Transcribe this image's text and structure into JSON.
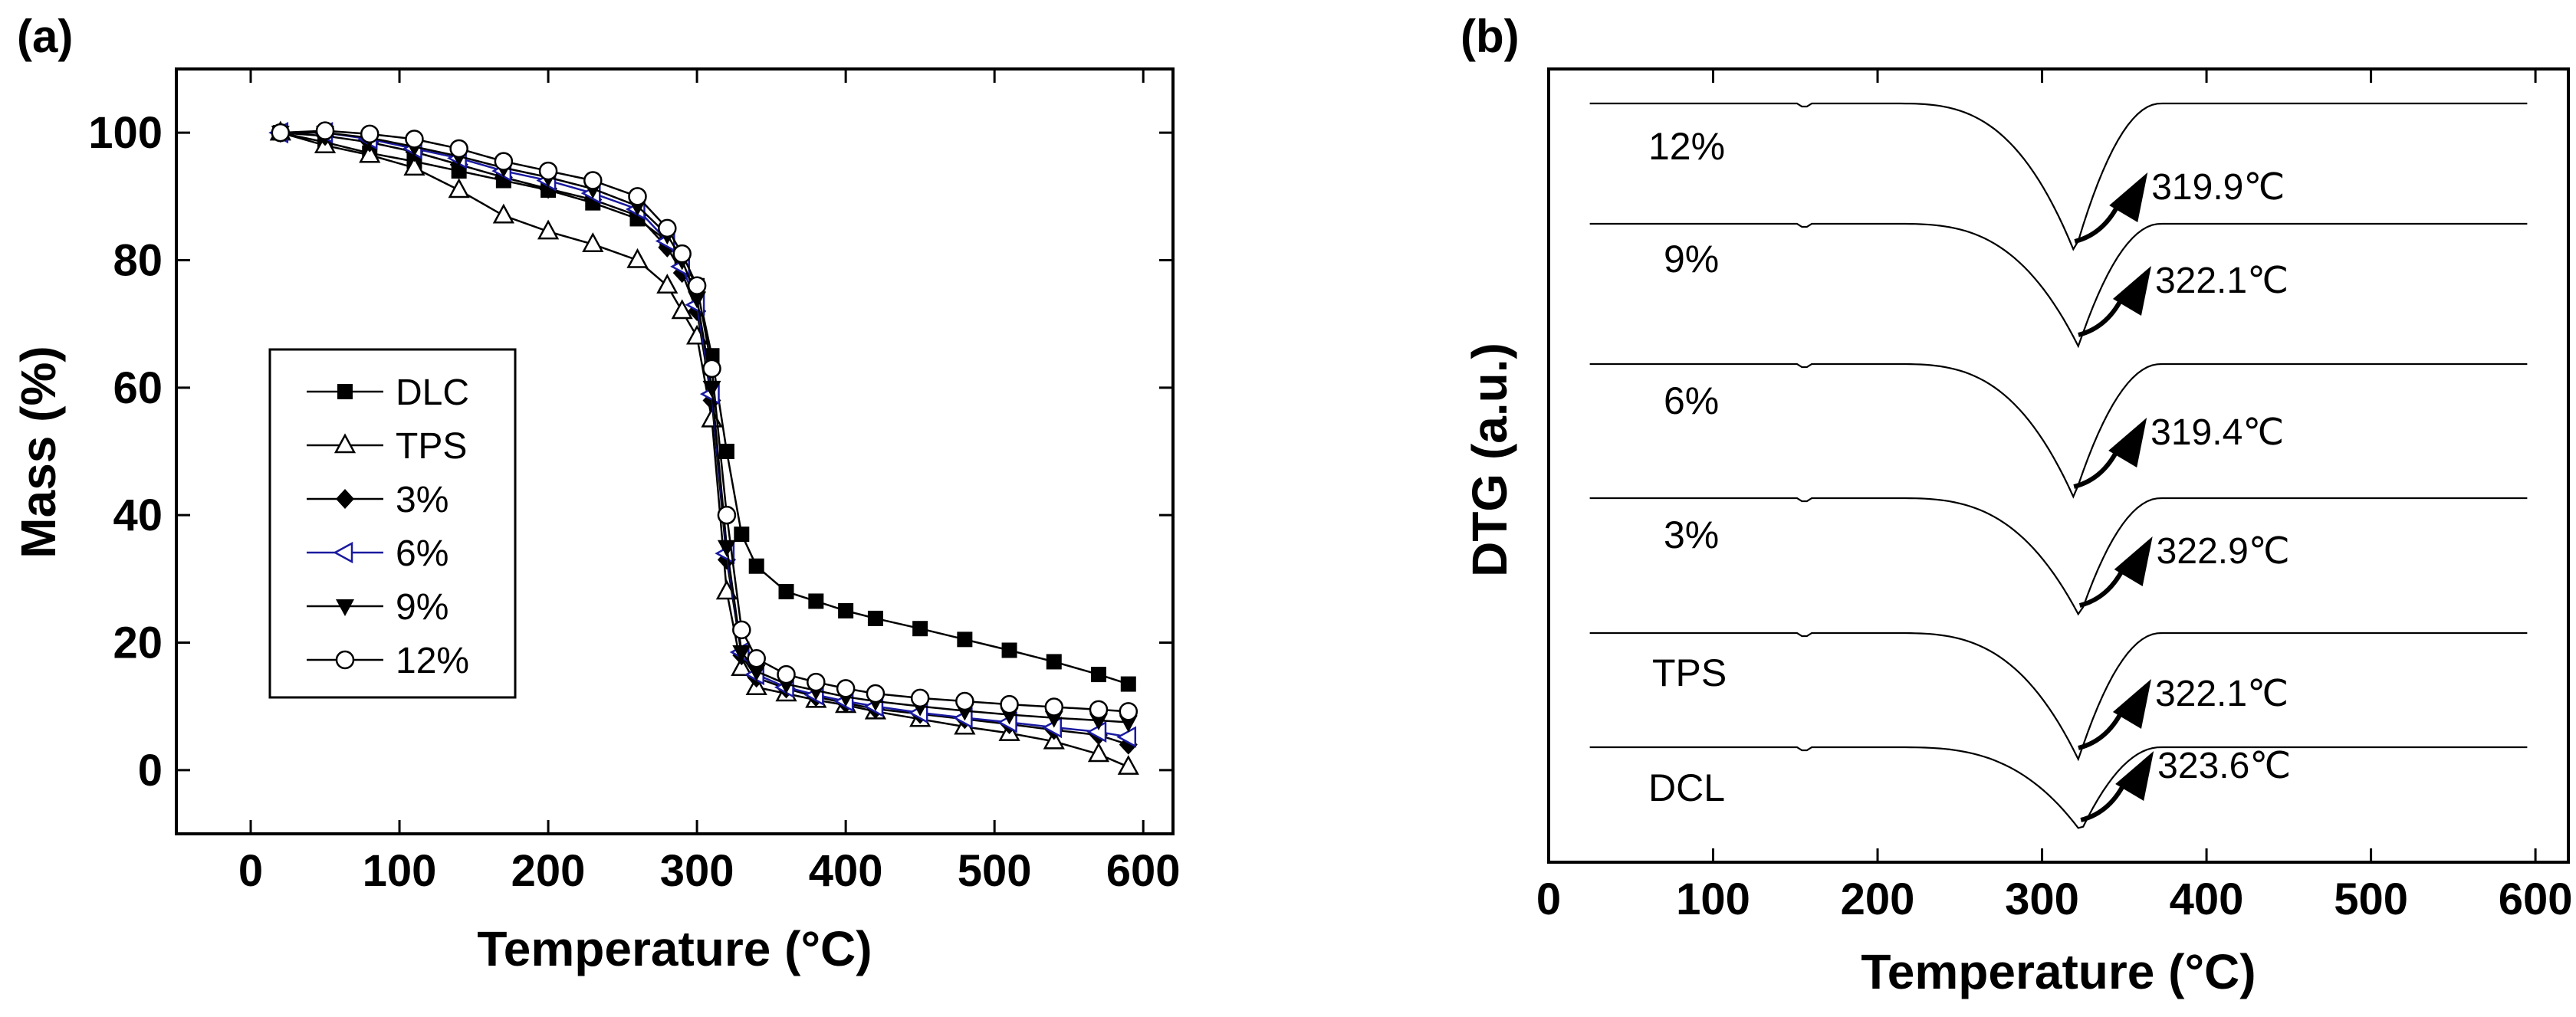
{
  "chart_data": [
    {
      "panel_label": "(a)",
      "type": "line",
      "xlabel": "Temperature (°C)",
      "ylabel": "Mass (%)",
      "xlim": [
        -50,
        620
      ],
      "ylim": [
        -10,
        110
      ],
      "x_ticks": [
        0,
        100,
        200,
        300,
        400,
        500,
        600
      ],
      "y_ticks": [
        0,
        20,
        40,
        60,
        80,
        100
      ],
      "x_tick_labels": [
        "0",
        "100",
        "200",
        "300",
        "400",
        "500",
        "600"
      ],
      "y_tick_labels": [
        "0",
        "20",
        "40",
        "60",
        "80",
        "100"
      ],
      "legend_position": "left-middle",
      "series": [
        {
          "name": "DLC",
          "marker": "filled-square",
          "color": "#000000",
          "x": [
            20,
            50,
            80,
            110,
            140,
            170,
            200,
            230,
            260,
            280,
            290,
            300,
            310,
            320,
            330,
            340,
            360,
            380,
            400,
            420,
            450,
            480,
            510,
            540,
            570,
            590
          ],
          "y": [
            100,
            98.5,
            96.8,
            95.5,
            94,
            92.5,
            91,
            89,
            86.5,
            83,
            80,
            76,
            65,
            50,
            37,
            32,
            28,
            26.5,
            25,
            23.8,
            22.2,
            20.5,
            18.8,
            17,
            15,
            13.5
          ]
        },
        {
          "name": "TPS",
          "marker": "open-triangle-up",
          "color": "#000000",
          "x": [
            20,
            50,
            80,
            110,
            140,
            170,
            200,
            230,
            260,
            280,
            290,
            300,
            310,
            320,
            330,
            340,
            360,
            380,
            400,
            420,
            450,
            480,
            510,
            540,
            570,
            590
          ],
          "y": [
            100,
            98,
            96.5,
            94.5,
            91,
            87,
            84.5,
            82.5,
            80,
            76,
            72,
            68,
            55,
            28,
            16,
            13,
            12,
            11,
            10.2,
            9.2,
            8,
            6.8,
            5.8,
            4.5,
            2.5,
            0.5
          ]
        },
        {
          "name": "3%",
          "marker": "filled-diamond",
          "color": "#000000",
          "x": [
            20,
            50,
            80,
            110,
            140,
            170,
            200,
            230,
            260,
            280,
            290,
            300,
            310,
            320,
            330,
            340,
            360,
            380,
            400,
            420,
            450,
            480,
            510,
            540,
            570,
            590
          ],
          "y": [
            100,
            99.5,
            98.5,
            97,
            95,
            93,
            91.2,
            89.5,
            87,
            82,
            78,
            72,
            58,
            33,
            18,
            14.5,
            12.8,
            11.5,
            10.5,
            9.6,
            8.8,
            8,
            7.2,
            6.3,
            5.5,
            4
          ]
        },
        {
          "name": "6%",
          "marker": "open-triangle-left",
          "color": "#1a1aa0",
          "x": [
            20,
            50,
            80,
            110,
            140,
            170,
            200,
            230,
            260,
            280,
            290,
            300,
            310,
            320,
            330,
            340,
            360,
            380,
            400,
            420,
            450,
            480,
            510,
            540,
            570,
            590
          ],
          "y": [
            100,
            100,
            99,
            97.5,
            96,
            94,
            92.5,
            90.5,
            88,
            83,
            79,
            73,
            59,
            34,
            18.5,
            15,
            13,
            11.8,
            10.8,
            10,
            9,
            8.2,
            7.5,
            6.7,
            6,
            5.2
          ]
        },
        {
          "name": "9%",
          "marker": "filled-triangle-down",
          "color": "#000000",
          "x": [
            20,
            50,
            80,
            110,
            140,
            170,
            200,
            230,
            260,
            280,
            290,
            300,
            310,
            320,
            330,
            340,
            360,
            380,
            400,
            420,
            450,
            480,
            510,
            540,
            570,
            590
          ],
          "y": [
            100,
            100,
            99.2,
            97.8,
            96.3,
            94.5,
            93,
            91.2,
            88.5,
            84,
            80,
            74,
            60,
            35,
            18.5,
            15.5,
            13.5,
            12.5,
            11.5,
            10.8,
            10,
            9.3,
            8.7,
            8.2,
            7.8,
            7.5
          ]
        },
        {
          "name": "12%",
          "marker": "open-circle",
          "color": "#000000",
          "x": [
            20,
            50,
            80,
            110,
            140,
            170,
            200,
            230,
            260,
            280,
            290,
            300,
            310,
            320,
            330,
            340,
            360,
            380,
            400,
            420,
            450,
            480,
            510,
            540,
            570,
            590
          ],
          "y": [
            100,
            100.3,
            99.8,
            99,
            97.5,
            95.5,
            94,
            92.5,
            90,
            85,
            81,
            76,
            63,
            40,
            22,
            17.5,
            15,
            13.8,
            12.8,
            12,
            11.3,
            10.8,
            10.3,
            9.9,
            9.5,
            9.2
          ]
        }
      ]
    },
    {
      "panel_label": "(b)",
      "type": "line",
      "xlabel": "Temperature (°C)",
      "ylabel": "DTG (a.u.)",
      "xlim": [
        0,
        620
      ],
      "ylim": [
        0,
        1
      ],
      "x_ticks": [
        0,
        100,
        200,
        300,
        400,
        500,
        600
      ],
      "x_tick_labels": [
        "0",
        "100",
        "200",
        "300",
        "400",
        "500",
        "600"
      ],
      "series": [
        {
          "name": "12%",
          "label": "12%",
          "peak_temperature": 319.9,
          "peak_label": "319.9℃"
        },
        {
          "name": "9%",
          "label": "9%",
          "peak_temperature": 322.1,
          "peak_label": "322.1℃"
        },
        {
          "name": "6%",
          "label": "6%",
          "peak_temperature": 319.4,
          "peak_label": "319.4℃"
        },
        {
          "name": "3%",
          "label": "3%",
          "peak_temperature": 322.9,
          "peak_label": "322.9℃"
        },
        {
          "name": "TPS",
          "label": "TPS",
          "peak_temperature": 322.1,
          "peak_label": "322.1℃"
        },
        {
          "name": "DCL",
          "label": "DCL",
          "peak_temperature": 323.6,
          "peak_label": "323.6℃"
        }
      ]
    }
  ]
}
